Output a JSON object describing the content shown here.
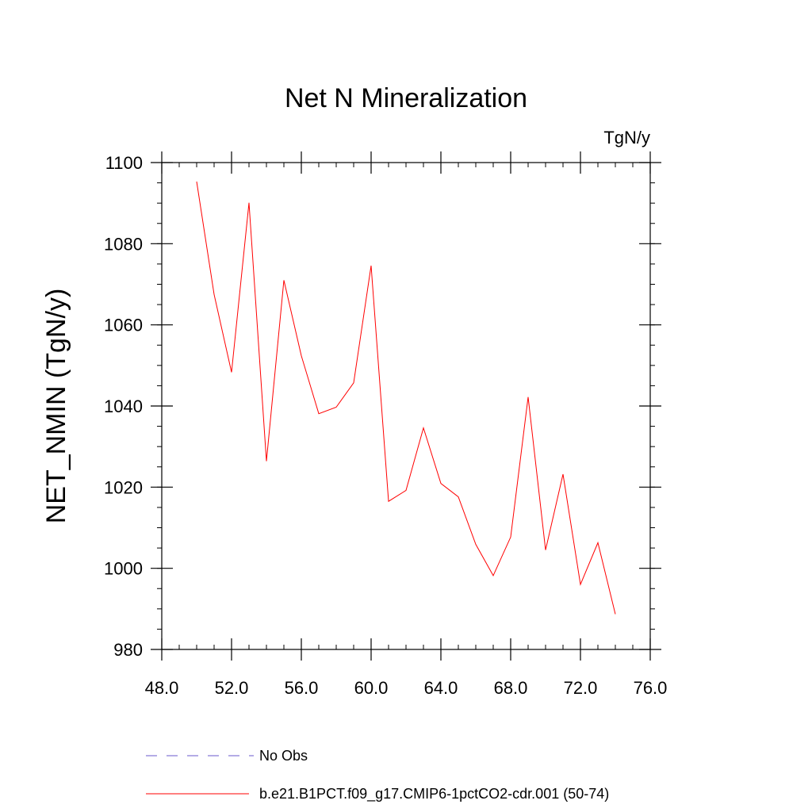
{
  "chart_data": {
    "type": "line",
    "title": "Net N Mineralization",
    "units_label": "TgN/y",
    "ylabel": "NET_NMIN  (TgN/y)",
    "xlabel": "",
    "xlim": [
      48,
      76
    ],
    "ylim": [
      980,
      1100
    ],
    "x_ticks": [
      "48.0",
      "52.0",
      "56.0",
      "60.0",
      "64.0",
      "68.0",
      "72.0",
      "76.0"
    ],
    "y_ticks": [
      "980",
      "1000",
      "1020",
      "1040",
      "1060",
      "1080",
      "1100"
    ],
    "series": [
      {
        "name": "b.e21.B1PCT.f09_g17.CMIP6-1pctCO2-cdr.001 (50-74)",
        "color": "#ff0000",
        "style": "solid",
        "x": [
          50,
          51,
          52,
          53,
          54,
          55,
          56,
          57,
          58,
          59,
          60,
          61,
          62,
          63,
          64,
          65,
          66,
          67,
          68,
          69,
          70,
          71,
          72,
          73,
          74
        ],
        "values": [
          1095.3,
          1067.5,
          1048.3,
          1090.1,
          1026.4,
          1071.0,
          1052.4,
          1038.1,
          1039.7,
          1045.7,
          1074.6,
          1016.5,
          1019.2,
          1034.6,
          1020.9,
          1017.6,
          1005.9,
          998.2,
          1007.7,
          1042.2,
          1004.5,
          1023.2,
          996.0,
          1006.3,
          988.7
        ]
      }
    ],
    "legend": [
      {
        "label": "No Obs",
        "color": "#6a5acd",
        "style": "dashed"
      },
      {
        "label": "b.e21.B1PCT.f09_g17.CMIP6-1pctCO2-cdr.001 (50-74)",
        "color": "#ff0000",
        "style": "solid"
      }
    ]
  }
}
